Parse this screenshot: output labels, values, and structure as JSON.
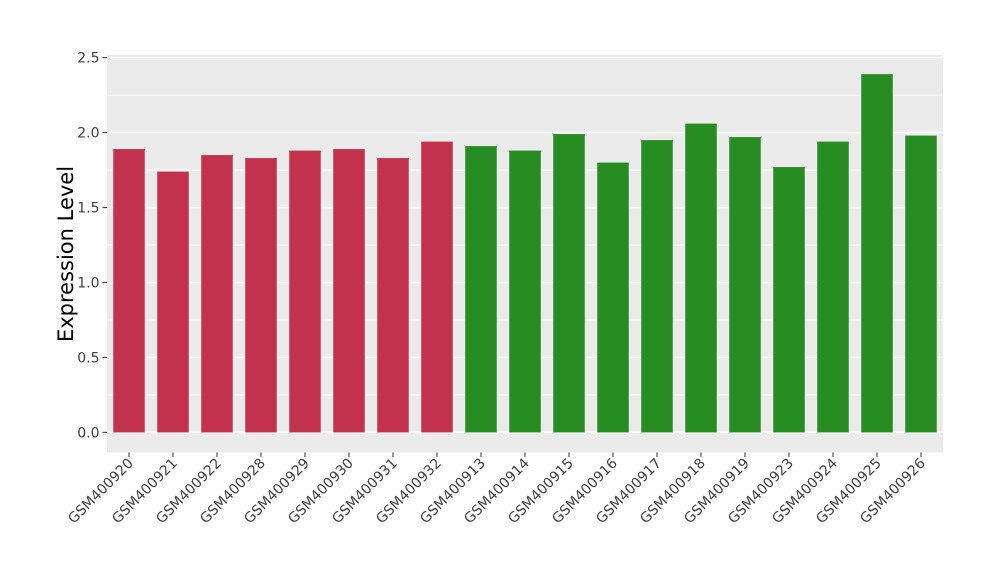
{
  "chart_data": {
    "type": "bar",
    "ylabel": "Expression Level",
    "xlabel": "",
    "ylim": [
      0,
      2.5
    ],
    "ytick_values": [
      0,
      0.5,
      1.0,
      1.5,
      2.0,
      2.5
    ],
    "ytick_labels": [
      "0.0",
      "0.5",
      "1.0",
      "1.5",
      "2.0",
      "2.5"
    ],
    "minor_tick_values": [
      0.25,
      0.75,
      1.25,
      1.75,
      2.25
    ],
    "grid": true,
    "legend_position": "none",
    "x_label_rotation_deg": 45,
    "categories": [
      "GSM400920",
      "GSM400921",
      "GSM400922",
      "GSM400928",
      "GSM400929",
      "GSM400930",
      "GSM400931",
      "GSM400932",
      "GSM400913",
      "GSM400914",
      "GSM400915",
      "GSM400916",
      "GSM400917",
      "GSM400918",
      "GSM400919",
      "GSM400923",
      "GSM400924",
      "GSM400925",
      "GSM400926"
    ],
    "values": [
      1.89,
      1.74,
      1.85,
      1.83,
      1.88,
      1.89,
      1.83,
      1.94,
      1.91,
      1.88,
      1.99,
      1.8,
      1.95,
      2.06,
      1.97,
      1.77,
      1.94,
      2.39,
      1.98
    ],
    "bar_groups": [
      "red",
      "red",
      "red",
      "red",
      "red",
      "red",
      "red",
      "red",
      "green",
      "green",
      "green",
      "green",
      "green",
      "green",
      "green",
      "green",
      "green",
      "green",
      "green"
    ],
    "group_colors": {
      "red": "#C3324C",
      "green": "#278C21"
    },
    "panel_background": "#EBEBEB",
    "gridline_color": "#FFFFFF",
    "axis_text_color": "#404040",
    "axis_title_color": "#000000",
    "tick_mark_color": "#404040"
  }
}
